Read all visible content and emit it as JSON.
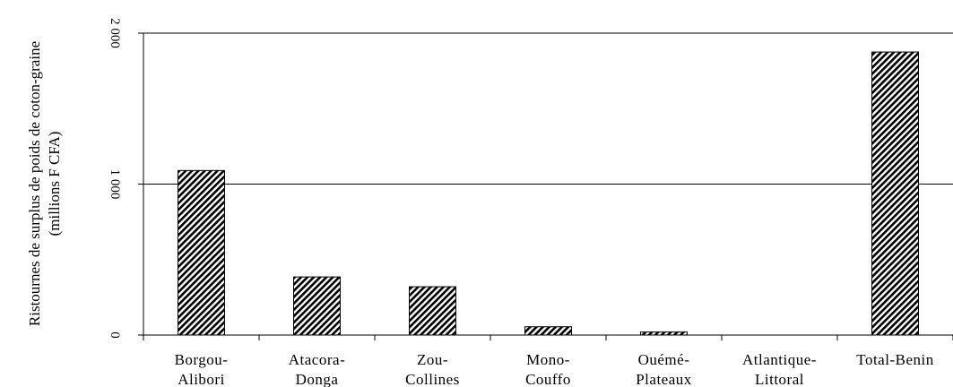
{
  "chart_data": {
    "type": "bar",
    "categories": [
      [
        "Borgou-",
        "Alibori"
      ],
      [
        "Atacora-",
        "Donga"
      ],
      [
        "Zou-",
        "Collines"
      ],
      [
        "Mono-",
        "Couffo"
      ],
      [
        "Ouémé-",
        "Plateaux"
      ],
      [
        "Atlantique-",
        "Littoral"
      ],
      [
        "Total-Benin"
      ]
    ],
    "values": [
      1090,
      385,
      320,
      55,
      20,
      0,
      1875
    ],
    "ylabel": [
      "Ristournes de surplus de poids de coton-graine",
      "(millions F CFA)"
    ],
    "ylim": [
      0,
      2000
    ],
    "yticks": [
      {
        "value": 0,
        "label": "0"
      },
      {
        "value": 1000,
        "label": "1 000"
      },
      {
        "value": 2000,
        "label": "2 000"
      }
    ],
    "grid": true,
    "bar_pattern": "diagonal-hatch",
    "bar_color": "#000000"
  }
}
